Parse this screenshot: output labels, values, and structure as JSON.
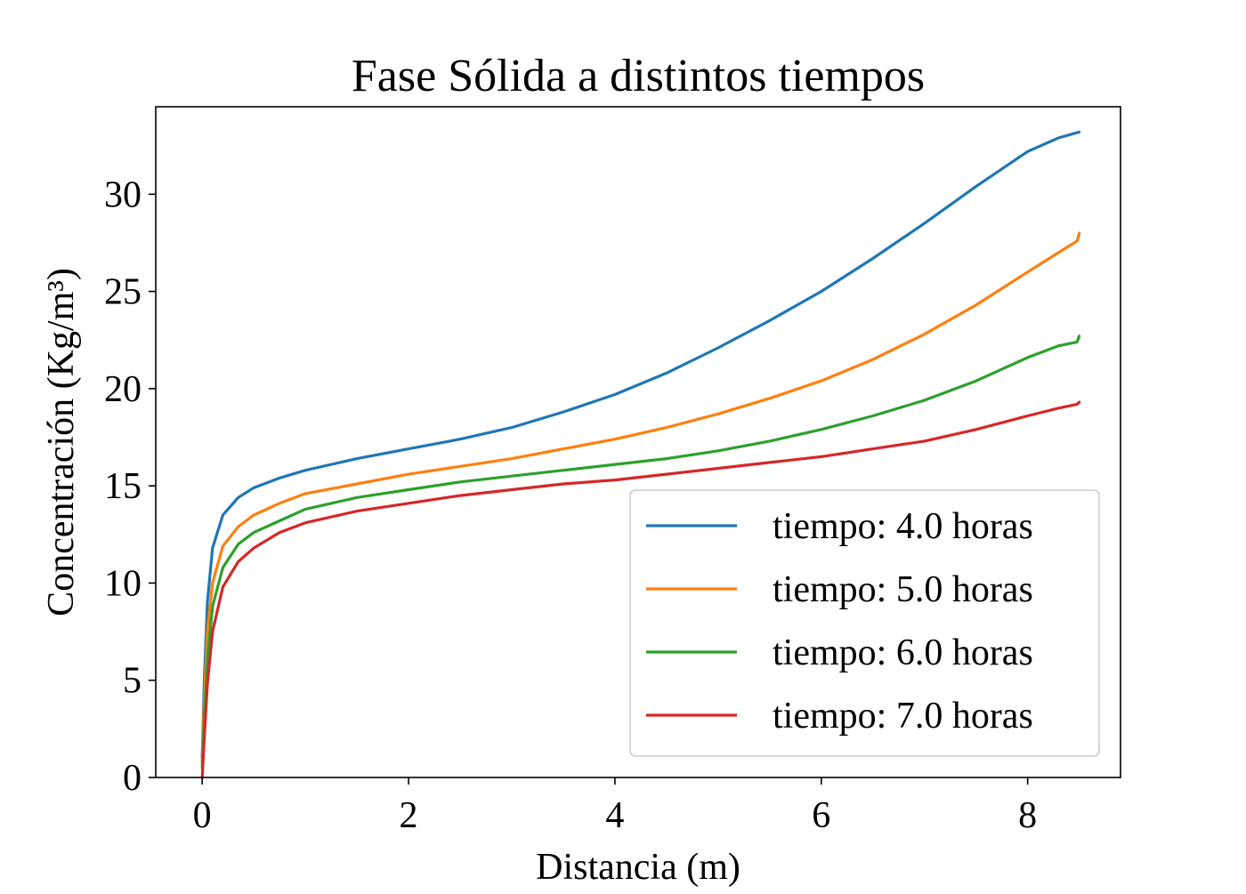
{
  "chart_data": {
    "type": "line",
    "title": "Fase Sólida a distintos tiempos",
    "xlabel": "Distancia (m)",
    "ylabel": "Concentración (Kg/m³)",
    "xlim": [
      -0.45,
      8.9
    ],
    "ylim": [
      0,
      34.5
    ],
    "xticks": [
      0,
      2,
      4,
      6,
      8
    ],
    "yticks": [
      0,
      5,
      10,
      15,
      20,
      25,
      30
    ],
    "xtick_labels": [
      "0",
      "2",
      "4",
      "6",
      "8"
    ],
    "ytick_labels": [
      "0",
      "5",
      "10",
      "15",
      "20",
      "25",
      "30"
    ],
    "grid": false,
    "legend_position": "lower-right",
    "series": [
      {
        "name": "tiempo: 4.0 horas",
        "color": "#1f77b4",
        "x": [
          0,
          0.02,
          0.05,
          0.1,
          0.2,
          0.35,
          0.5,
          0.75,
          1.0,
          1.5,
          2.0,
          2.5,
          3.0,
          3.5,
          4.0,
          4.5,
          5.0,
          5.5,
          6.0,
          6.5,
          7.0,
          7.5,
          8.0,
          8.3,
          8.5
        ],
        "y": [
          1.0,
          5.0,
          9.0,
          11.8,
          13.5,
          14.4,
          14.9,
          15.4,
          15.8,
          16.4,
          16.9,
          17.4,
          18.0,
          18.8,
          19.7,
          20.8,
          22.1,
          23.5,
          25.0,
          26.7,
          28.5,
          30.4,
          32.2,
          32.9,
          33.2
        ]
      },
      {
        "name": "tiempo: 5.0 horas",
        "color": "#ff7f0e",
        "x": [
          0,
          0.02,
          0.05,
          0.1,
          0.2,
          0.35,
          0.5,
          0.75,
          1.0,
          1.5,
          2.0,
          2.5,
          3.0,
          3.5,
          4.0,
          4.5,
          5.0,
          5.5,
          6.0,
          6.5,
          7.0,
          7.5,
          8.0,
          8.3,
          8.48,
          8.5
        ],
        "y": [
          0.8,
          4.0,
          7.5,
          10.0,
          11.9,
          12.9,
          13.5,
          14.1,
          14.6,
          15.1,
          15.6,
          16.0,
          16.4,
          16.9,
          17.4,
          18.0,
          18.7,
          19.5,
          20.4,
          21.5,
          22.8,
          24.3,
          26.0,
          27.0,
          27.6,
          28.0
        ]
      },
      {
        "name": "tiempo: 6.0 horas",
        "color": "#2ca02c",
        "x": [
          0,
          0.02,
          0.05,
          0.1,
          0.2,
          0.35,
          0.5,
          0.75,
          1.0,
          1.5,
          2.0,
          2.5,
          3.0,
          3.5,
          4.0,
          4.5,
          5.0,
          5.5,
          6.0,
          6.5,
          7.0,
          7.5,
          8.0,
          8.3,
          8.48,
          8.5
        ],
        "y": [
          0.5,
          3.0,
          6.0,
          8.8,
          10.8,
          12.0,
          12.6,
          13.2,
          13.8,
          14.4,
          14.8,
          15.2,
          15.5,
          15.8,
          16.1,
          16.4,
          16.8,
          17.3,
          17.9,
          18.6,
          19.4,
          20.4,
          21.6,
          22.2,
          22.4,
          22.7
        ]
      },
      {
        "name": "tiempo: 7.0 horas",
        "color": "#d62728",
        "x": [
          0,
          0.02,
          0.05,
          0.1,
          0.2,
          0.35,
          0.5,
          0.75,
          1.0,
          1.5,
          2.0,
          2.5,
          3.0,
          3.5,
          4.0,
          4.5,
          5.0,
          5.5,
          6.0,
          6.5,
          7.0,
          7.5,
          8.0,
          8.3,
          8.48,
          8.5
        ],
        "y": [
          0.0,
          2.0,
          4.8,
          7.5,
          9.8,
          11.1,
          11.8,
          12.6,
          13.1,
          13.7,
          14.1,
          14.5,
          14.8,
          15.1,
          15.3,
          15.6,
          15.9,
          16.2,
          16.5,
          16.9,
          17.3,
          17.9,
          18.6,
          19.0,
          19.2,
          19.3
        ]
      }
    ]
  }
}
